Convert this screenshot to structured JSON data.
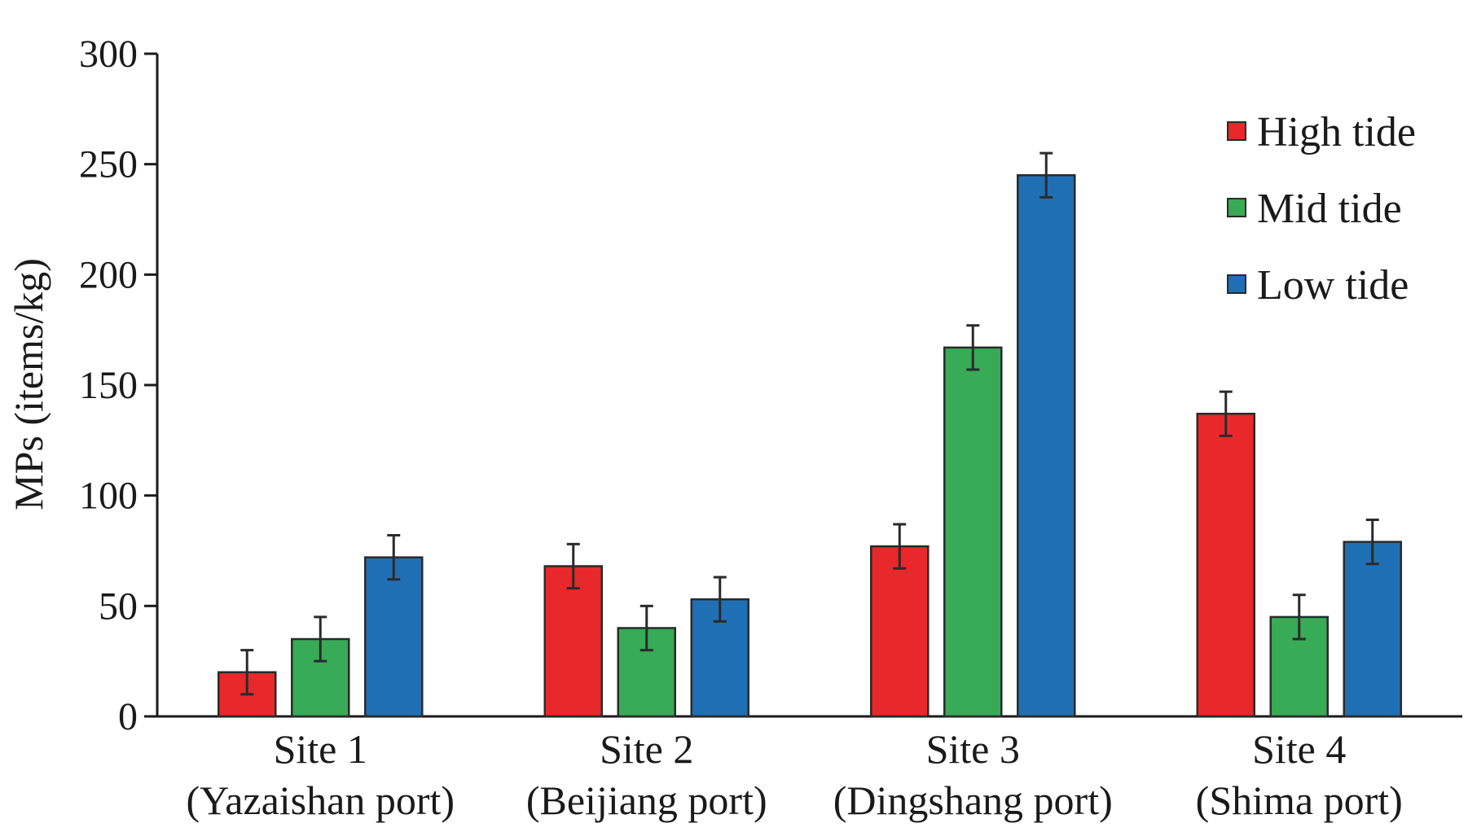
{
  "chart_data": {
    "type": "bar",
    "title": "",
    "xlabel": "",
    "ylabel": "MPs (items/kg)",
    "ylim": [
      0,
      300
    ],
    "yticks": [
      0,
      50,
      100,
      150,
      200,
      250,
      300
    ],
    "grid": false,
    "legend_position": "top-right",
    "categories": [
      {
        "line1": "Site 1",
        "line2": "(Yazaishan port)"
      },
      {
        "line1": "Site 2",
        "line2": "(Beijiang  port)"
      },
      {
        "line1": "Site 3",
        "line2": "(Dingshang port)"
      },
      {
        "line1": "Site 4",
        "line2": "(Shima port)"
      }
    ],
    "series": [
      {
        "name": "High tide",
        "color": "#e8282a",
        "values": [
          20,
          68,
          77,
          137
        ],
        "errors": [
          10,
          10,
          10,
          10
        ]
      },
      {
        "name": "Mid tide",
        "color": "#37ab55",
        "values": [
          35,
          40,
          167,
          45
        ],
        "errors": [
          10,
          10,
          10,
          10
        ]
      },
      {
        "name": "Low tide",
        "color": "#1f6fb5",
        "values": [
          72,
          53,
          245,
          79
        ],
        "errors": [
          10,
          10,
          10,
          10
        ]
      }
    ]
  }
}
